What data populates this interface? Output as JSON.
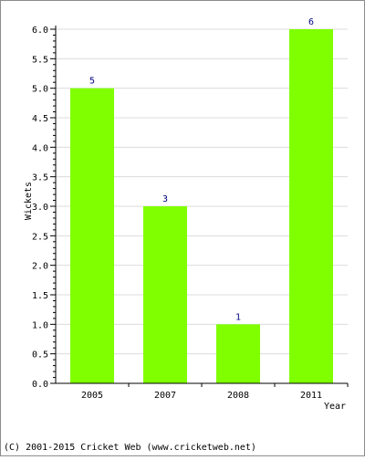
{
  "chart_data": {
    "type": "bar",
    "categories": [
      "2005",
      "2007",
      "2008",
      "2011"
    ],
    "values": [
      5,
      3,
      1,
      6
    ],
    "data_labels": [
      "5",
      "3",
      "1",
      "6"
    ],
    "xlabel": "Year",
    "ylabel": "Wickets",
    "ylim": [
      0,
      6
    ],
    "yticks": [
      "0.0",
      "0.5",
      "1.0",
      "1.5",
      "2.0",
      "2.5",
      "3.0",
      "3.5",
      "4.0",
      "4.5",
      "5.0",
      "5.5",
      "6.0"
    ],
    "grid": true,
    "bar_color": "#80ff00",
    "grid_color": "#dcdcdc",
    "label_color": "#000080"
  },
  "footer": {
    "copyright": "(C) 2001-2015 Cricket Web (www.cricketweb.net)"
  }
}
